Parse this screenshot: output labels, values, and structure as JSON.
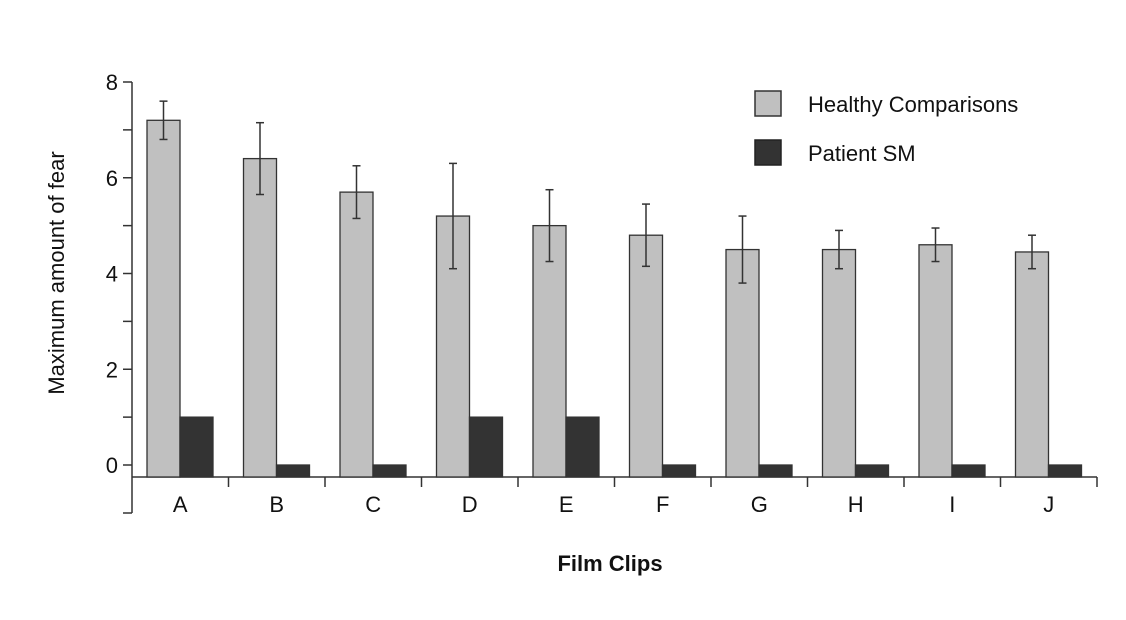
{
  "chart_data": {
    "type": "bar",
    "title": "",
    "xlabel": "Film Clips",
    "ylabel": "Maximum amount of fear",
    "ylim": [
      0,
      8
    ],
    "yticks": [
      "0",
      "2",
      "4",
      "6",
      "8"
    ],
    "categories": [
      "A",
      "B",
      "C",
      "D",
      "E",
      "F",
      "G",
      "H",
      "I",
      "J"
    ],
    "series": [
      {
        "name": "Healthy Comparisons",
        "color": "#c0c0c0",
        "values": [
          7.2,
          6.4,
          5.7,
          5.2,
          5.0,
          4.8,
          4.5,
          4.5,
          4.6,
          4.45
        ],
        "error_low": [
          6.8,
          5.65,
          5.15,
          4.1,
          4.25,
          4.15,
          3.8,
          4.1,
          4.25,
          4.1
        ],
        "error_high": [
          7.6,
          7.15,
          6.25,
          6.3,
          5.75,
          5.45,
          5.2,
          4.9,
          4.95,
          4.8
        ]
      },
      {
        "name": "Patient SM",
        "color": "#333333",
        "values": [
          1,
          0,
          0,
          1,
          1,
          0,
          0,
          0,
          0,
          0
        ]
      }
    ],
    "legend": "top-right",
    "grid": false
  }
}
